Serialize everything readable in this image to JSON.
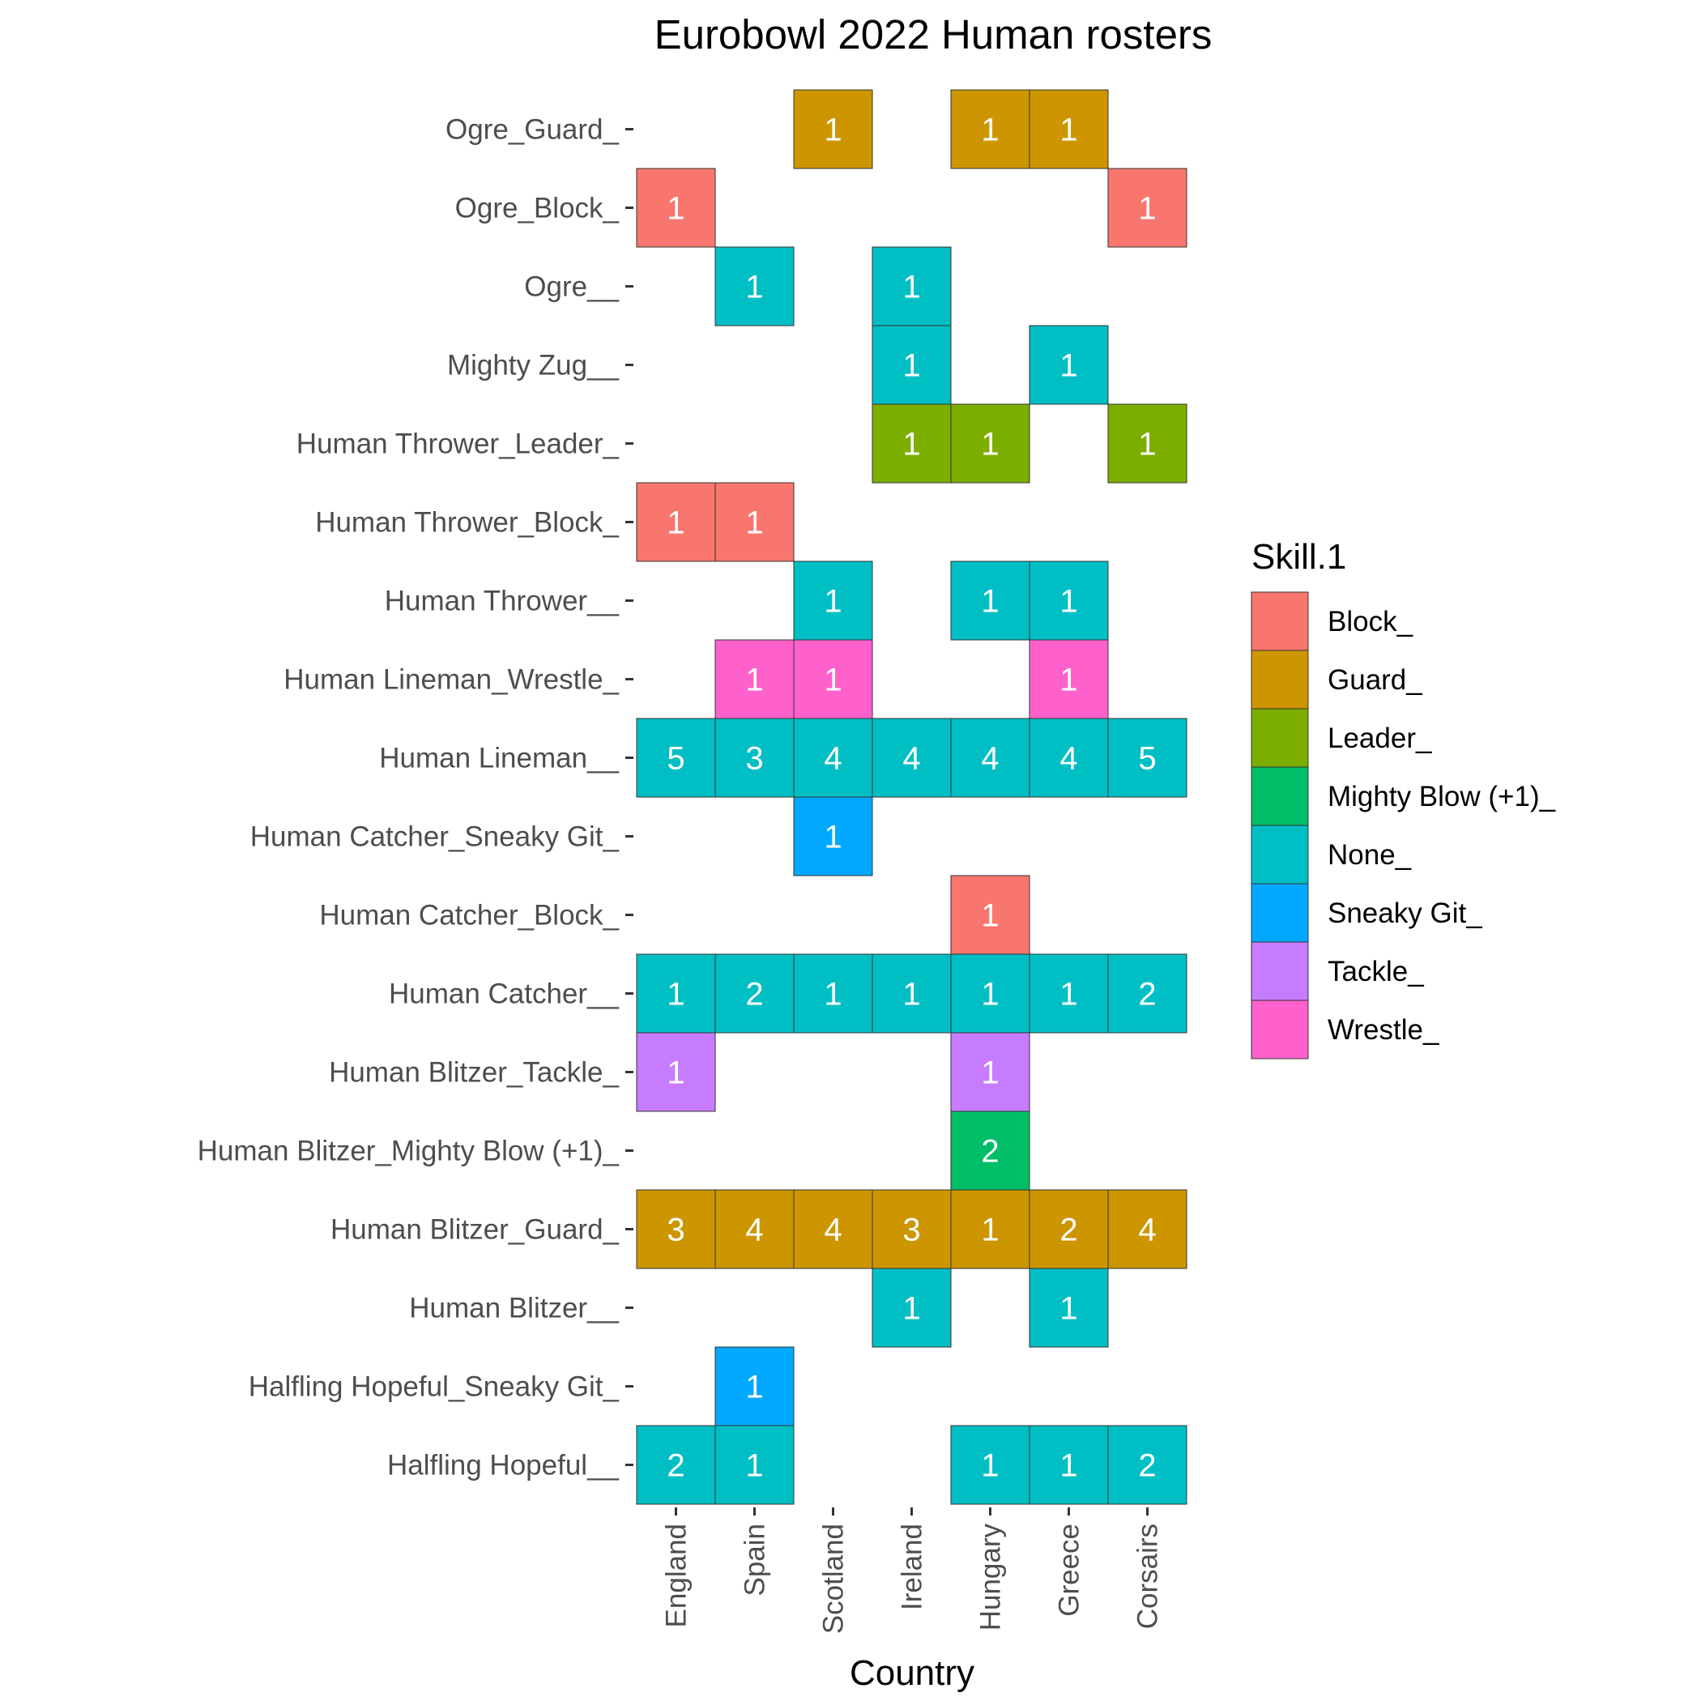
{
  "chart_data": {
    "type": "heatmap",
    "title": "Eurobowl 2022 Human rosters",
    "xlabel": "Country",
    "ylabel": "",
    "legend_title": "Skill.1",
    "legend_position": "right",
    "grid": false,
    "x_categories": [
      "England",
      "Spain",
      "Scotland",
      "Ireland",
      "Hungary",
      "Greece",
      "Corsairs"
    ],
    "y_categories_top_to_bottom": [
      "Ogre_Guard_",
      "Ogre_Block_",
      "Ogre__",
      "Mighty Zug__",
      "Human Thrower_Leader_",
      "Human Thrower_Block_",
      "Human Thrower__",
      "Human Lineman_Wrestle_",
      "Human Lineman__",
      "Human Catcher_Sneaky Git_",
      "Human Catcher_Block_",
      "Human Catcher__",
      "Human Blitzer_Tackle_",
      "Human Blitzer_Mighty Blow (+1)_",
      "Human Blitzer_Guard_",
      "Human Blitzer__",
      "Halfling Hopeful_Sneaky Git_",
      "Halfling Hopeful__"
    ],
    "legend": [
      {
        "skill": "Block_",
        "color": "#F8766D"
      },
      {
        "skill": "Guard_",
        "color": "#CD9600"
      },
      {
        "skill": "Leader_",
        "color": "#7CAE00"
      },
      {
        "skill": "Mighty Blow (+1)_",
        "color": "#00BE67"
      },
      {
        "skill": "None_",
        "color": "#00BFC4"
      },
      {
        "skill": "Sneaky Git_",
        "color": "#00A9FF"
      },
      {
        "skill": "Tackle_",
        "color": "#C77CFF"
      },
      {
        "skill": "Wrestle_",
        "color": "#FF61CC"
      }
    ],
    "cells": [
      {
        "y": "Ogre_Guard_",
        "x": "Scotland",
        "skill": "Guard_",
        "value": 1
      },
      {
        "y": "Ogre_Guard_",
        "x": "Hungary",
        "skill": "Guard_",
        "value": 1
      },
      {
        "y": "Ogre_Guard_",
        "x": "Greece",
        "skill": "Guard_",
        "value": 1
      },
      {
        "y": "Ogre_Block_",
        "x": "England",
        "skill": "Block_",
        "value": 1
      },
      {
        "y": "Ogre_Block_",
        "x": "Corsairs",
        "skill": "Block_",
        "value": 1
      },
      {
        "y": "Ogre__",
        "x": "Spain",
        "skill": "None_",
        "value": 1
      },
      {
        "y": "Ogre__",
        "x": "Ireland",
        "skill": "None_",
        "value": 1
      },
      {
        "y": "Mighty Zug__",
        "x": "Ireland",
        "skill": "None_",
        "value": 1
      },
      {
        "y": "Mighty Zug__",
        "x": "Greece",
        "skill": "None_",
        "value": 1
      },
      {
        "y": "Human Thrower_Leader_",
        "x": "Ireland",
        "skill": "Leader_",
        "value": 1
      },
      {
        "y": "Human Thrower_Leader_",
        "x": "Hungary",
        "skill": "Leader_",
        "value": 1
      },
      {
        "y": "Human Thrower_Leader_",
        "x": "Corsairs",
        "skill": "Leader_",
        "value": 1
      },
      {
        "y": "Human Thrower_Block_",
        "x": "England",
        "skill": "Block_",
        "value": 1
      },
      {
        "y": "Human Thrower_Block_",
        "x": "Spain",
        "skill": "Block_",
        "value": 1
      },
      {
        "y": "Human Thrower__",
        "x": "Scotland",
        "skill": "None_",
        "value": 1
      },
      {
        "y": "Human Thrower__",
        "x": "Hungary",
        "skill": "None_",
        "value": 1
      },
      {
        "y": "Human Thrower__",
        "x": "Greece",
        "skill": "None_",
        "value": 1
      },
      {
        "y": "Human Lineman_Wrestle_",
        "x": "Spain",
        "skill": "Wrestle_",
        "value": 1
      },
      {
        "y": "Human Lineman_Wrestle_",
        "x": "Scotland",
        "skill": "Wrestle_",
        "value": 1
      },
      {
        "y": "Human Lineman_Wrestle_",
        "x": "Greece",
        "skill": "Wrestle_",
        "value": 1
      },
      {
        "y": "Human Lineman__",
        "x": "England",
        "skill": "None_",
        "value": 5
      },
      {
        "y": "Human Lineman__",
        "x": "Spain",
        "skill": "None_",
        "value": 3
      },
      {
        "y": "Human Lineman__",
        "x": "Scotland",
        "skill": "None_",
        "value": 4
      },
      {
        "y": "Human Lineman__",
        "x": "Ireland",
        "skill": "None_",
        "value": 4
      },
      {
        "y": "Human Lineman__",
        "x": "Hungary",
        "skill": "None_",
        "value": 4
      },
      {
        "y": "Human Lineman__",
        "x": "Greece",
        "skill": "None_",
        "value": 4
      },
      {
        "y": "Human Lineman__",
        "x": "Corsairs",
        "skill": "None_",
        "value": 5
      },
      {
        "y": "Human Catcher_Sneaky Git_",
        "x": "Scotland",
        "skill": "Sneaky Git_",
        "value": 1
      },
      {
        "y": "Human Catcher_Block_",
        "x": "Hungary",
        "skill": "Block_",
        "value": 1
      },
      {
        "y": "Human Catcher__",
        "x": "England",
        "skill": "None_",
        "value": 1
      },
      {
        "y": "Human Catcher__",
        "x": "Spain",
        "skill": "None_",
        "value": 2
      },
      {
        "y": "Human Catcher__",
        "x": "Scotland",
        "skill": "None_",
        "value": 1
      },
      {
        "y": "Human Catcher__",
        "x": "Ireland",
        "skill": "None_",
        "value": 1
      },
      {
        "y": "Human Catcher__",
        "x": "Hungary",
        "skill": "None_",
        "value": 1
      },
      {
        "y": "Human Catcher__",
        "x": "Greece",
        "skill": "None_",
        "value": 1
      },
      {
        "y": "Human Catcher__",
        "x": "Corsairs",
        "skill": "None_",
        "value": 2
      },
      {
        "y": "Human Blitzer_Tackle_",
        "x": "England",
        "skill": "Tackle_",
        "value": 1
      },
      {
        "y": "Human Blitzer_Tackle_",
        "x": "Hungary",
        "skill": "Tackle_",
        "value": 1
      },
      {
        "y": "Human Blitzer_Mighty Blow (+1)_",
        "x": "Hungary",
        "skill": "Mighty Blow (+1)_",
        "value": 2
      },
      {
        "y": "Human Blitzer_Guard_",
        "x": "England",
        "skill": "Guard_",
        "value": 3
      },
      {
        "y": "Human Blitzer_Guard_",
        "x": "Spain",
        "skill": "Guard_",
        "value": 4
      },
      {
        "y": "Human Blitzer_Guard_",
        "x": "Scotland",
        "skill": "Guard_",
        "value": 4
      },
      {
        "y": "Human Blitzer_Guard_",
        "x": "Ireland",
        "skill": "Guard_",
        "value": 3
      },
      {
        "y": "Human Blitzer_Guard_",
        "x": "Hungary",
        "skill": "Guard_",
        "value": 1
      },
      {
        "y": "Human Blitzer_Guard_",
        "x": "Greece",
        "skill": "Guard_",
        "value": 2
      },
      {
        "y": "Human Blitzer_Guard_",
        "x": "Corsairs",
        "skill": "Guard_",
        "value": 4
      },
      {
        "y": "Human Blitzer__",
        "x": "Ireland",
        "skill": "None_",
        "value": 1
      },
      {
        "y": "Human Blitzer__",
        "x": "Greece",
        "skill": "None_",
        "value": 1
      },
      {
        "y": "Halfling Hopeful_Sneaky Git_",
        "x": "Spain",
        "skill": "Sneaky Git_",
        "value": 1
      },
      {
        "y": "Halfling Hopeful__",
        "x": "England",
        "skill": "None_",
        "value": 2
      },
      {
        "y": "Halfling Hopeful__",
        "x": "Spain",
        "skill": "None_",
        "value": 1
      },
      {
        "y": "Halfling Hopeful__",
        "x": "Hungary",
        "skill": "None_",
        "value": 1
      },
      {
        "y": "Halfling Hopeful__",
        "x": "Greece",
        "skill": "None_",
        "value": 1
      },
      {
        "y": "Halfling Hopeful__",
        "x": "Corsairs",
        "skill": "None_",
        "value": 2
      }
    ]
  }
}
